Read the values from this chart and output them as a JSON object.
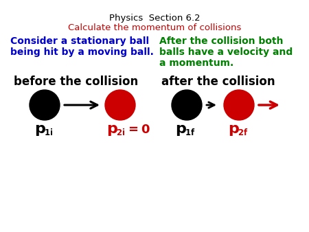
{
  "title_line1": "Physics  Section 6.2",
  "title_line2": "Calculate the momentum of collisions",
  "title1_color": "#000000",
  "title2_color": "#cc0000",
  "left_desc_line1": "Consider a stationary ball",
  "left_desc_line2": "being hit by a moving ball.",
  "left_desc_color": "#0000cc",
  "right_desc_line1": "After the collision both",
  "right_desc_line2": "balls have a velocity and",
  "right_desc_line3": "a momentum.",
  "right_desc_color": "#008000",
  "before_label": "before the collision",
  "after_label": "after the collision",
  "label_color": "#000000",
  "ball_black": "#000000",
  "ball_red": "#cc0000",
  "arrow_black": "#000000",
  "arrow_red": "#cc0000",
  "p1i_color": "#000000",
  "p2i_color": "#cc0000",
  "p1f_color": "#000000",
  "p2f_color": "#cc0000",
  "bg_color": "#ffffff"
}
